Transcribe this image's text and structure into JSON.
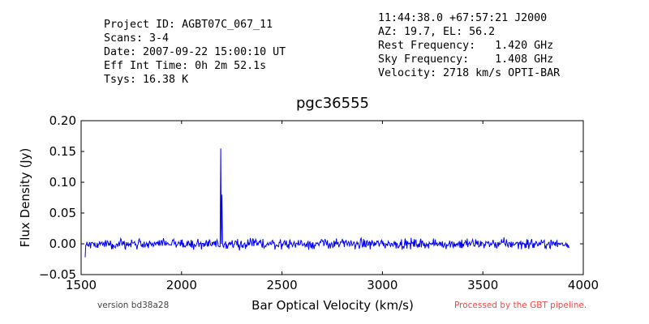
{
  "header": {
    "left": [
      "Project ID: AGBT07C_067_11",
      "Scans: 3-4",
      "Date: 2007-09-22 15:00:10 UT",
      "Eff Int Time: 0h 2m 52.1s",
      "Tsys: 16.38 K"
    ],
    "right": [
      "11:44:38.0 +67:57:21 J2000",
      "AZ: 19.7, EL: 56.2",
      "Rest Frequency:   1.420 GHz",
      "Sky Frequency:    1.408 GHz",
      "Velocity: 2718 km/s OPTI-BAR"
    ]
  },
  "footer": {
    "version": "version bd38a28",
    "processed": "Processed by the GBT pipeline."
  },
  "colors": {
    "line": "#0000ff",
    "processed": "#ff4444",
    "version": "#444444"
  },
  "chart_data": {
    "type": "line",
    "title": "pgc36555",
    "xlabel": "Bar Optical Velocity (km/s)",
    "ylabel": "Flux Density (Jy)",
    "xlim": [
      1500,
      4000
    ],
    "ylim": [
      -0.05,
      0.2
    ],
    "xticks": [
      1500,
      2000,
      2500,
      3000,
      3500,
      4000
    ],
    "yticks": [
      -0.05,
      0.0,
      0.05,
      0.1,
      0.15,
      0.2
    ],
    "ytick_labels": [
      "−0.05",
      "0.00",
      "0.05",
      "0.10",
      "0.15",
      "0.20"
    ],
    "grid": false,
    "series": [
      {
        "x_range": [
          1520,
          3930
        ],
        "noise_rms": 0.004,
        "features": [
          {
            "x": 1520,
            "y": -0.022
          },
          {
            "x": 2195,
            "y": 0.155
          },
          {
            "x": 2200,
            "y": 0.08
          }
        ]
      }
    ]
  }
}
